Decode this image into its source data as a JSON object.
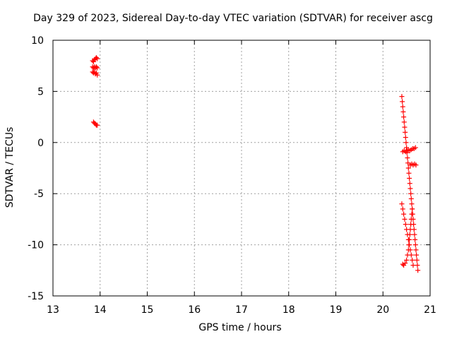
{
  "chart_data": {
    "type": "scatter",
    "title": "Day 329 of 2023, Sidereal Day-to-day VTEC variation (SDTVAR) for receiver ascg",
    "xlabel": "GPS time / hours",
    "ylabel": "SDTVAR / TECUs",
    "xlim": [
      13,
      21
    ],
    "ylim": [
      -15,
      10
    ],
    "xticks": [
      "13",
      "14",
      "15",
      "16",
      "17",
      "18",
      "19",
      "20",
      "21"
    ],
    "yticks": [
      "10",
      "5",
      "0",
      "-5",
      "-10",
      "-15"
    ],
    "grid": true,
    "marker": "+",
    "marker_color": "#ff0000",
    "series": [
      {
        "points": [
          [
            13.84,
            8.0
          ],
          [
            13.86,
            7.9
          ],
          [
            13.88,
            8.1
          ],
          [
            13.9,
            8.2
          ],
          [
            13.92,
            8.3
          ],
          [
            13.94,
            8.2
          ],
          [
            13.84,
            7.4
          ],
          [
            13.86,
            7.3
          ],
          [
            13.88,
            7.4
          ],
          [
            13.9,
            7.3
          ],
          [
            13.92,
            7.4
          ],
          [
            13.94,
            7.3
          ],
          [
            13.84,
            6.9
          ],
          [
            13.86,
            6.8
          ],
          [
            13.88,
            6.9
          ],
          [
            13.9,
            6.7
          ],
          [
            13.92,
            6.8
          ],
          [
            13.94,
            6.6
          ],
          [
            13.86,
            2.0
          ],
          [
            13.88,
            1.9
          ],
          [
            13.9,
            1.8
          ],
          [
            13.92,
            1.7
          ],
          [
            13.94,
            1.7
          ],
          [
            20.4,
            4.5
          ],
          [
            20.41,
            4.0
          ],
          [
            20.42,
            3.5
          ],
          [
            20.43,
            3.0
          ],
          [
            20.44,
            2.5
          ],
          [
            20.45,
            2.0
          ],
          [
            20.46,
            1.5
          ],
          [
            20.47,
            1.0
          ],
          [
            20.48,
            0.5
          ],
          [
            20.49,
            0.0
          ],
          [
            20.5,
            -0.5
          ],
          [
            20.51,
            -1.0
          ],
          [
            20.52,
            -1.5
          ],
          [
            20.53,
            -2.0
          ],
          [
            20.54,
            -2.5
          ],
          [
            20.55,
            -3.0
          ],
          [
            20.56,
            -3.5
          ],
          [
            20.57,
            -4.0
          ],
          [
            20.58,
            -4.5
          ],
          [
            20.59,
            -5.0
          ],
          [
            20.6,
            -5.5
          ],
          [
            20.61,
            -6.0
          ],
          [
            20.62,
            -6.5
          ],
          [
            20.63,
            -7.0
          ],
          [
            20.64,
            -7.5
          ],
          [
            20.65,
            -8.0
          ],
          [
            20.66,
            -8.5
          ],
          [
            20.67,
            -9.0
          ],
          [
            20.68,
            -9.5
          ],
          [
            20.69,
            -10.0
          ],
          [
            20.7,
            -10.5
          ],
          [
            20.71,
            -11.0
          ],
          [
            20.72,
            -11.5
          ],
          [
            20.73,
            -12.0
          ],
          [
            20.74,
            -12.5
          ],
          [
            20.42,
            -0.9
          ],
          [
            20.45,
            -0.8
          ],
          [
            20.48,
            -0.9
          ],
          [
            20.51,
            -0.8
          ],
          [
            20.54,
            -0.7
          ],
          [
            20.57,
            -0.8
          ],
          [
            20.6,
            -0.7
          ],
          [
            20.63,
            -0.6
          ],
          [
            20.66,
            -0.6
          ],
          [
            20.69,
            -0.5
          ],
          [
            20.58,
            -2.2
          ],
          [
            20.61,
            -2.1
          ],
          [
            20.64,
            -2.2
          ],
          [
            20.67,
            -2.1
          ],
          [
            20.7,
            -2.2
          ],
          [
            20.4,
            -6.0
          ],
          [
            20.42,
            -6.5
          ],
          [
            20.44,
            -7.0
          ],
          [
            20.46,
            -7.5
          ],
          [
            20.48,
            -8.0
          ],
          [
            20.5,
            -8.5
          ],
          [
            20.52,
            -9.0
          ],
          [
            20.54,
            -9.5
          ],
          [
            20.56,
            -10.0
          ],
          [
            20.58,
            -10.5
          ],
          [
            20.6,
            -11.0
          ],
          [
            20.62,
            -11.5
          ],
          [
            20.64,
            -12.0
          ],
          [
            20.62,
            -6.5
          ],
          [
            20.61,
            -7.0
          ],
          [
            20.6,
            -7.5
          ],
          [
            20.59,
            -8.0
          ],
          [
            20.58,
            -8.5
          ],
          [
            20.57,
            -9.0
          ],
          [
            20.56,
            -9.5
          ],
          [
            20.55,
            -10.0
          ],
          [
            20.54,
            -10.5
          ],
          [
            20.52,
            -11.0
          ],
          [
            20.5,
            -11.5
          ],
          [
            20.47,
            -11.8
          ],
          [
            20.44,
            -12.0
          ],
          [
            20.42,
            -11.9
          ]
        ]
      }
    ]
  }
}
